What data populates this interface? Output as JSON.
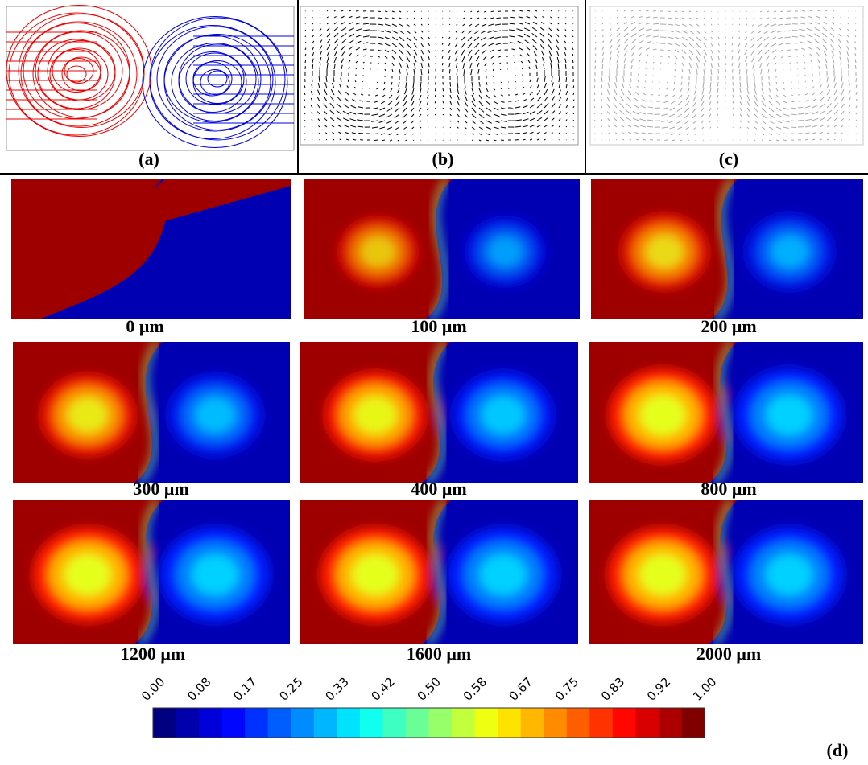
{
  "panels": [
    {
      "label": "(a)"
    },
    {
      "label": "(b)"
    },
    {
      "label": "(c)"
    }
  ],
  "contours": {
    "frames": [
      {
        "label": "0 μm"
      },
      {
        "label": "100 μm"
      },
      {
        "label": "200 μm"
      },
      {
        "label": "300 μm"
      },
      {
        "label": "400 μm"
      },
      {
        "label": "800 μm"
      },
      {
        "label": "1200 μm"
      },
      {
        "label": "1600 μm"
      },
      {
        "label": "2000 μm"
      }
    ],
    "colorbar_ticks": [
      "0.00",
      "0.08",
      "0.17",
      "0.25",
      "0.33",
      "0.42",
      "0.50",
      "0.58",
      "0.67",
      "0.75",
      "0.83",
      "0.92",
      "1.00"
    ],
    "label": "(d)"
  }
}
